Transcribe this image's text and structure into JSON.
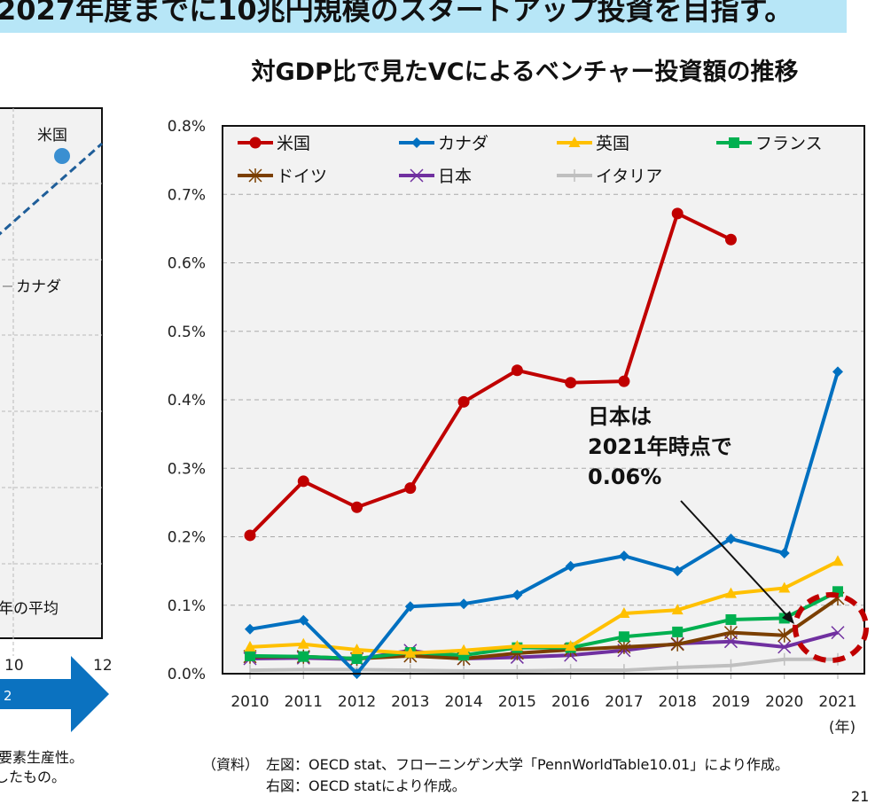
{
  "header": {
    "banner": "2027年度までに10兆円規模のスタートアップ投資を目指す。",
    "banner_color": "#b7e6f7"
  },
  "left_chart": {
    "point_labels": [
      "米国",
      "カナダ"
    ],
    "period_label": "年の平均",
    "x_ticks": [
      "10",
      "12"
    ],
    "arrow_label": "2",
    "caption_lines": [
      "要素生産性。",
      "したもの。"
    ],
    "point_color": "#3a8fd1",
    "trend_color": "#1f5e99",
    "arrow_color": "#0b72c0"
  },
  "chart_data": {
    "type": "line",
    "title": "対GDP比で見たVCによるベンチャー投資額の推移",
    "xlabel": "(年)",
    "ylabel": "",
    "ylim": [
      0,
      0.8
    ],
    "y_ticks": [
      "0.0%",
      "0.1%",
      "0.2%",
      "0.3%",
      "0.4%",
      "0.5%",
      "0.6%",
      "0.7%",
      "0.8%"
    ],
    "categories": [
      "2010",
      "2011",
      "2012",
      "2013",
      "2014",
      "2015",
      "2016",
      "2017",
      "2018",
      "2019",
      "2020",
      "2021"
    ],
    "grid": true,
    "legend_position": "top",
    "unit": "%",
    "series": [
      {
        "name": "米国",
        "color": "#c00000",
        "marker": "circle",
        "values": [
          0.202,
          0.281,
          0.243,
          0.271,
          0.397,
          0.443,
          0.425,
          0.427,
          0.672,
          0.634,
          null,
          null
        ]
      },
      {
        "name": "カナダ",
        "color": "#0070c0",
        "marker": "diamond",
        "values": [
          0.065,
          0.078,
          0.0,
          0.098,
          0.102,
          0.115,
          0.157,
          0.172,
          0.15,
          0.197,
          0.176,
          0.441
        ]
      },
      {
        "name": "英国",
        "color": "#ffc000",
        "marker": "triangle",
        "values": [
          0.039,
          0.043,
          0.035,
          0.03,
          0.034,
          0.04,
          0.04,
          0.088,
          0.093,
          0.117,
          0.125,
          0.164
        ]
      },
      {
        "name": "フランス",
        "color": "#00b050",
        "marker": "square",
        "values": [
          0.026,
          0.025,
          0.022,
          0.031,
          0.027,
          0.038,
          0.038,
          0.054,
          0.061,
          0.079,
          0.081,
          0.12
        ]
      },
      {
        "name": "ドイツ",
        "color": "#7b3f00",
        "marker": "star",
        "values": [
          0.025,
          0.025,
          0.022,
          0.026,
          0.022,
          0.03,
          0.035,
          0.039,
          0.043,
          0.06,
          0.056,
          0.11
        ]
      },
      {
        "name": "日本",
        "color": "#7030a0",
        "marker": "x",
        "values": [
          0.022,
          0.023,
          0.021,
          0.034,
          0.022,
          0.024,
          0.027,
          0.034,
          0.044,
          0.047,
          0.039,
          0.06
        ]
      },
      {
        "name": "イタリア",
        "color": "#bfbfbf",
        "marker": "plus",
        "values": [
          0.005,
          0.006,
          0.006,
          0.005,
          0.004,
          0.004,
          0.005,
          0.005,
          0.009,
          0.012,
          0.021,
          0.021
        ]
      }
    ],
    "annotation": {
      "lines": [
        "日本は",
        "2021年時点で",
        "0.06%"
      ],
      "highlight_color": "#c00000"
    }
  },
  "footer": {
    "source_label": "（資料）",
    "source_left": "左図：OECD stat、フローニンゲン大学「PennWorldTable10.01」により作成。",
    "source_right": "右図：OECD statにより作成。",
    "page_number": "21"
  }
}
